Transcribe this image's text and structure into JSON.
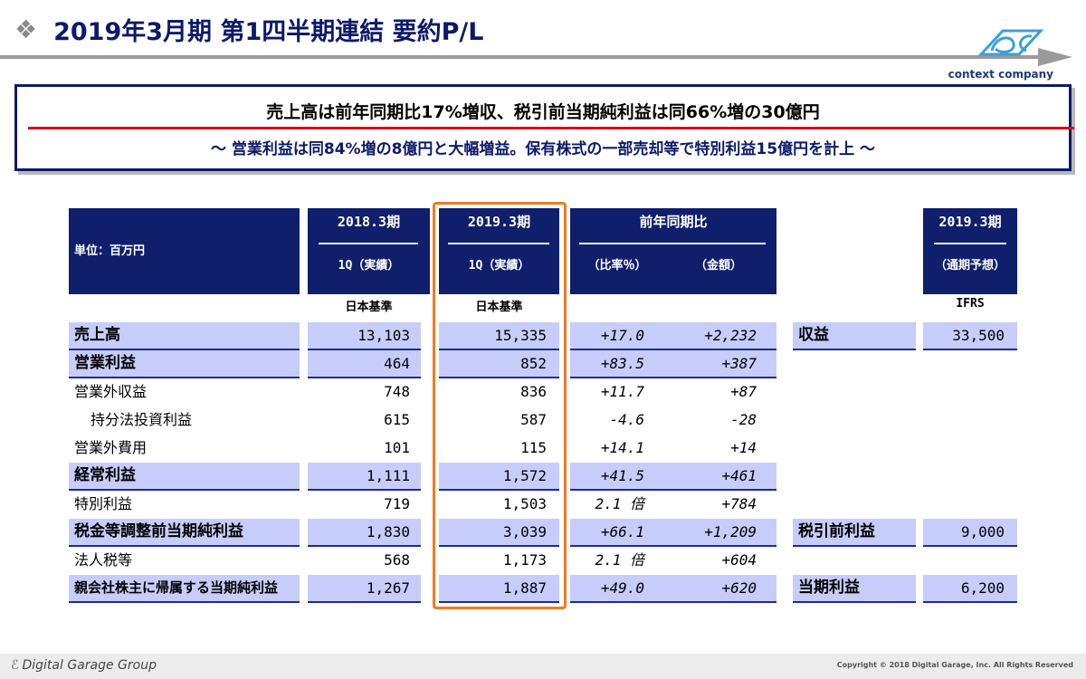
{
  "header": {
    "title": "2019年3月期 第1四半期連結 要約P/L",
    "bullet_icon": "diamond-bullet-icon"
  },
  "logo": {
    "tagline": "context company"
  },
  "headline": {
    "main": "売上高は前年同期比17%増収、税引前当期純利益は同66%増の30億円",
    "sub": "～ 営業利益は同84%増の8億円と大幅増益。保有株式の一部売却等で特別利益15億円を計上 ～"
  },
  "table": {
    "unit_label": "単位：百万円",
    "col_fy2018": {
      "period": "2018.3期",
      "sub": "1Q（実績）",
      "standard": "日本基準"
    },
    "col_fy2019": {
      "period": "2019.3期",
      "sub": "1Q（実績）",
      "standard": "日本基準"
    },
    "col_yoy": {
      "title": "前年同期比",
      "pct": "（比率％）",
      "amt": "（金額）"
    },
    "col_forecast": {
      "period": "2019.3期",
      "sub": "（通期予想）",
      "standard": "IFRS"
    },
    "rows": [
      {
        "label": "売上高",
        "v2018": "13,103",
        "v2019": "15,335",
        "pct": "+17.0",
        "amt": "+2,232",
        "forecast_label": "収益",
        "forecast_value": "33,500"
      },
      {
        "label": "営業利益",
        "v2018": "464",
        "v2019": "852",
        "pct": "+83.5",
        "amt": "+387"
      },
      {
        "label": "営業外収益",
        "v2018": "748",
        "v2019": "836",
        "pct": "+11.7",
        "amt": "+87"
      },
      {
        "label": "持分法投資利益",
        "v2018": "615",
        "v2019": "587",
        "pct": "-4.6",
        "amt": "-28"
      },
      {
        "label": "営業外費用",
        "v2018": "101",
        "v2019": "115",
        "pct": "+14.1",
        "amt": "+14"
      },
      {
        "label": "経常利益",
        "v2018": "1,111",
        "v2019": "1,572",
        "pct": "+41.5",
        "amt": "+461"
      },
      {
        "label": "特別利益",
        "v2018": "719",
        "v2019": "1,503",
        "pct": "2.1 倍",
        "amt": "+784"
      },
      {
        "label": "税金等調整前当期純利益",
        "v2018": "1,830",
        "v2019": "3,039",
        "pct": "+66.1",
        "amt": "+1,209",
        "forecast_label": "税引前利益",
        "forecast_value": "9,000"
      },
      {
        "label": "法人税等",
        "v2018": "568",
        "v2019": "1,173",
        "pct": "2.1 倍",
        "amt": "+604"
      },
      {
        "label": "親会社株主に帰属する当期純利益",
        "v2018": "1,267",
        "v2019": "1,887",
        "pct": "+49.0",
        "amt": "+620",
        "forecast_label": "当期利益",
        "forecast_value": "6,200"
      }
    ]
  },
  "footer": {
    "company": "Digital Garage Group",
    "copyright": "Copyright © 2018 Digital Garage, Inc. All Rights Reserved"
  }
}
